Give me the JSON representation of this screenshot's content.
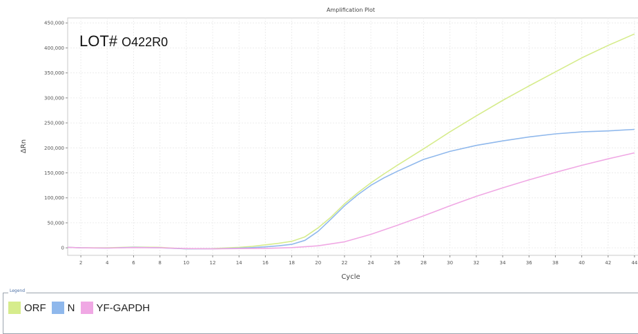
{
  "chart_data": {
    "type": "line",
    "title": "Amplification Plot",
    "xlabel": "Cycle",
    "ylabel": "ΔRn",
    "xlim": [
      1,
      45
    ],
    "ylim": [
      -15000,
      460000
    ],
    "x_ticks": [
      2,
      4,
      6,
      8,
      10,
      12,
      14,
      16,
      18,
      20,
      22,
      24,
      26,
      28,
      30,
      32,
      34,
      36,
      38,
      40,
      42,
      44
    ],
    "y_ticks": [
      0,
      50000,
      100000,
      150000,
      200000,
      250000,
      300000,
      350000,
      400000,
      450000
    ],
    "y_tick_labels": [
      "0",
      "50,000",
      "100,000",
      "150,000",
      "200,000",
      "250,000",
      "300,000",
      "350,000",
      "400,000",
      "450,000"
    ],
    "grid": true,
    "legend_placement": "bottom",
    "annotation": {
      "prefix": "LOT# ",
      "code": "O422R0"
    },
    "series": [
      {
        "name": "ORF",
        "color": "#d6ec8c",
        "x": [
          1,
          2,
          4,
          6,
          8,
          10,
          12,
          14,
          15,
          16,
          17,
          18,
          19,
          20,
          21,
          22,
          23,
          24,
          25,
          26,
          28,
          30,
          32,
          34,
          36,
          38,
          40,
          42,
          44
        ],
        "y": [
          1000,
          0,
          0,
          1500,
          1000,
          -2000,
          -1500,
          1000,
          3000,
          6000,
          9000,
          13000,
          22000,
          40000,
          62000,
          88000,
          110000,
          130000,
          148000,
          165000,
          198000,
          232000,
          264000,
          295000,
          324000,
          352000,
          380000,
          405000,
          428000
        ]
      },
      {
        "name": "N",
        "color": "#8fb8ec",
        "x": [
          1,
          2,
          4,
          6,
          8,
          10,
          12,
          14,
          15,
          16,
          17,
          18,
          19,
          20,
          21,
          22,
          23,
          24,
          25,
          26,
          28,
          30,
          32,
          34,
          36,
          38,
          40,
          42,
          44
        ],
        "y": [
          1000,
          0,
          -500,
          1000,
          0,
          -2000,
          -2000,
          -500,
          500,
          2000,
          4000,
          7000,
          15000,
          33000,
          58000,
          84000,
          106000,
          125000,
          140000,
          153000,
          177000,
          193000,
          205000,
          214000,
          222000,
          228000,
          232000,
          234000,
          237000
        ]
      },
      {
        "name": "YF-GAPDH",
        "color": "#f0a8e4",
        "x": [
          1,
          2,
          4,
          6,
          8,
          10,
          12,
          14,
          16,
          18,
          20,
          22,
          24,
          26,
          28,
          30,
          32,
          34,
          36,
          38,
          40,
          42,
          44
        ],
        "y": [
          1000,
          0,
          -500,
          500,
          0,
          -1500,
          -2000,
          -1500,
          -1000,
          500,
          4000,
          12000,
          27000,
          45000,
          64000,
          84000,
          103000,
          120000,
          136000,
          151000,
          165000,
          178000,
          190000
        ]
      }
    ]
  },
  "legend": {
    "title": "Legend"
  }
}
